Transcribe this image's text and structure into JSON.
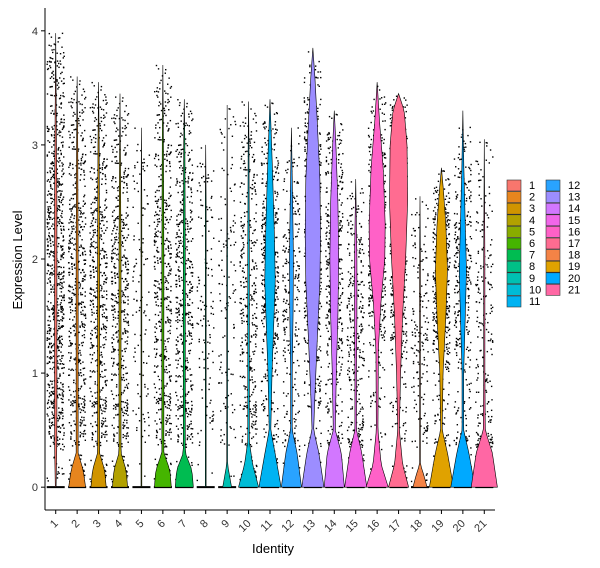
{
  "chart_data": {
    "type": "violin",
    "title": "",
    "xlabel": "Identity",
    "ylabel": "Expression Level",
    "ylim": [
      -0.2,
      4.2
    ],
    "yticks": [
      0,
      1,
      2,
      3,
      4
    ],
    "grid": false,
    "legend_position": "right",
    "legend_columns": 2,
    "jitter_points": true,
    "categories": [
      "1",
      "2",
      "3",
      "4",
      "5",
      "6",
      "7",
      "8",
      "9",
      "10",
      "11",
      "12",
      "13",
      "14",
      "15",
      "16",
      "17",
      "18",
      "19",
      "20",
      "21"
    ],
    "series": [
      {
        "name": "1",
        "color": "#F8766D",
        "max": 3.98,
        "zero_fraction": 0.08,
        "density": [
          [
            0,
            0.02
          ],
          [
            0.3,
            0.05
          ],
          [
            0.6,
            0.06
          ],
          [
            1.0,
            0.06
          ],
          [
            1.5,
            0.06
          ],
          [
            2.0,
            0.06
          ],
          [
            2.5,
            0.06
          ],
          [
            3.0,
            0.04
          ],
          [
            3.5,
            0.02
          ],
          [
            3.98,
            0.0
          ]
        ]
      },
      {
        "name": "2",
        "color": "#E7851E",
        "max": 3.6,
        "zero_fraction": 0.4,
        "density": [
          [
            0,
            0.42
          ],
          [
            0.15,
            0.3
          ],
          [
            0.3,
            0.05
          ],
          [
            1.0,
            0.05
          ],
          [
            2.0,
            0.05
          ],
          [
            3.0,
            0.03
          ],
          [
            3.6,
            0.0
          ]
        ]
      },
      {
        "name": "3",
        "color": "#D09400",
        "max": 3.55,
        "zero_fraction": 0.42,
        "density": [
          [
            0,
            0.38
          ],
          [
            0.15,
            0.3
          ],
          [
            0.3,
            0.05
          ],
          [
            1.0,
            0.05
          ],
          [
            2.0,
            0.05
          ],
          [
            3.0,
            0.03
          ],
          [
            3.55,
            0.0
          ]
        ]
      },
      {
        "name": "4",
        "color": "#B2A100",
        "max": 3.45,
        "zero_fraction": 0.45,
        "density": [
          [
            0,
            0.38
          ],
          [
            0.15,
            0.3
          ],
          [
            0.3,
            0.05
          ],
          [
            1.0,
            0.05
          ],
          [
            2.0,
            0.05
          ],
          [
            3.0,
            0.02
          ],
          [
            3.45,
            0.0
          ]
        ]
      },
      {
        "name": "5",
        "color": "#89AC00",
        "max": 3.15,
        "zero_fraction": 0.92,
        "density": [
          [
            0,
            0.02
          ],
          [
            0.5,
            0.02
          ],
          [
            1.5,
            0.02
          ],
          [
            2.5,
            0.02
          ],
          [
            3.15,
            0.0
          ]
        ]
      },
      {
        "name": "6",
        "color": "#45B500",
        "max": 3.7,
        "zero_fraction": 0.45,
        "density": [
          [
            0,
            0.42
          ],
          [
            0.15,
            0.35
          ],
          [
            0.3,
            0.05
          ],
          [
            1.0,
            0.05
          ],
          [
            2.0,
            0.05
          ],
          [
            3.0,
            0.03
          ],
          [
            3.7,
            0.0
          ]
        ]
      },
      {
        "name": "7",
        "color": "#00BC51",
        "max": 3.4,
        "zero_fraction": 0.45,
        "density": [
          [
            0,
            0.45
          ],
          [
            0.15,
            0.38
          ],
          [
            0.3,
            0.05
          ],
          [
            1.0,
            0.05
          ],
          [
            2.0,
            0.05
          ],
          [
            3.0,
            0.03
          ],
          [
            3.4,
            0.0
          ]
        ]
      },
      {
        "name": "8",
        "color": "#00C087",
        "max": 3.0,
        "zero_fraction": 0.9,
        "density": [
          [
            0,
            0.02
          ],
          [
            0.5,
            0.02
          ],
          [
            1.5,
            0.02
          ],
          [
            2.5,
            0.02
          ],
          [
            3.0,
            0.0
          ]
        ]
      },
      {
        "name": "9",
        "color": "#00C0B2",
        "max": 3.35,
        "zero_fraction": 0.9,
        "density": [
          [
            0,
            0.22
          ],
          [
            0.1,
            0.12
          ],
          [
            0.2,
            0.02
          ],
          [
            1.0,
            0.02
          ],
          [
            2.0,
            0.02
          ],
          [
            3.35,
            0.0
          ]
        ]
      },
      {
        "name": "10",
        "color": "#00BCD6",
        "max": 3.38,
        "zero_fraction": 0.6,
        "density": [
          [
            0,
            0.5
          ],
          [
            0.2,
            0.2
          ],
          [
            0.4,
            0.04
          ],
          [
            1.0,
            0.04
          ],
          [
            2.0,
            0.04
          ],
          [
            3.0,
            0.02
          ],
          [
            3.38,
            0.0
          ]
        ]
      },
      {
        "name": "11",
        "color": "#00B3F2",
        "max": 3.4,
        "zero_fraction": 0.45,
        "density": [
          [
            0,
            0.55
          ],
          [
            0.3,
            0.25
          ],
          [
            0.5,
            0.04
          ],
          [
            1.0,
            0.1
          ],
          [
            1.5,
            0.2
          ],
          [
            1.8,
            0.26
          ],
          [
            2.2,
            0.22
          ],
          [
            2.8,
            0.12
          ],
          [
            3.4,
            0.0
          ]
        ]
      },
      {
        "name": "12",
        "color": "#29A3FF",
        "max": 3.15,
        "zero_fraction": 0.7,
        "density": [
          [
            0,
            0.5
          ],
          [
            0.3,
            0.28
          ],
          [
            0.5,
            0.04
          ],
          [
            1.0,
            0.04
          ],
          [
            1.5,
            0.08
          ],
          [
            2.0,
            0.1
          ],
          [
            2.5,
            0.06
          ],
          [
            3.15,
            0.0
          ]
        ]
      },
      {
        "name": "13",
        "color": "#9C8DFF",
        "max": 3.85,
        "zero_fraction": 0.35,
        "density": [
          [
            0,
            0.55
          ],
          [
            0.3,
            0.3
          ],
          [
            0.5,
            0.04
          ],
          [
            0.8,
            0.1
          ],
          [
            1.3,
            0.22
          ],
          [
            1.8,
            0.35
          ],
          [
            2.2,
            0.38
          ],
          [
            2.7,
            0.35
          ],
          [
            3.2,
            0.22
          ],
          [
            3.6,
            0.1
          ],
          [
            3.85,
            0.0
          ]
        ]
      },
      {
        "name": "14",
        "color": "#D277FF",
        "max": 3.3,
        "zero_fraction": 0.5,
        "density": [
          [
            0,
            0.5
          ],
          [
            0.3,
            0.35
          ],
          [
            0.5,
            0.05
          ],
          [
            1.0,
            0.1
          ],
          [
            1.5,
            0.18
          ],
          [
            2.0,
            0.22
          ],
          [
            2.5,
            0.18
          ],
          [
            3.0,
            0.08
          ],
          [
            3.3,
            0.0
          ]
        ]
      },
      {
        "name": "15",
        "color": "#F166E9",
        "max": 2.7,
        "zero_fraction": 0.65,
        "density": [
          [
            0,
            0.55
          ],
          [
            0.3,
            0.3
          ],
          [
            0.5,
            0.04
          ],
          [
            1.0,
            0.04
          ],
          [
            1.5,
            0.06
          ],
          [
            2.0,
            0.06
          ],
          [
            2.7,
            0.0
          ]
        ]
      },
      {
        "name": "16",
        "color": "#FF61C7",
        "max": 3.55,
        "zero_fraction": 0.4,
        "density": [
          [
            0,
            0.55
          ],
          [
            0.2,
            0.2
          ],
          [
            0.5,
            0.04
          ],
          [
            1.2,
            0.06
          ],
          [
            1.6,
            0.18
          ],
          [
            2.0,
            0.38
          ],
          [
            2.3,
            0.4
          ],
          [
            2.8,
            0.3
          ],
          [
            3.2,
            0.12
          ],
          [
            3.55,
            0.0
          ]
        ]
      },
      {
        "name": "17",
        "color": "#FF6C91",
        "max": 3.45,
        "zero_fraction": 0.4,
        "density": [
          [
            0,
            0.5
          ],
          [
            0.2,
            0.2
          ],
          [
            0.5,
            0.04
          ],
          [
            1.0,
            0.1
          ],
          [
            1.5,
            0.2
          ],
          [
            2.0,
            0.35
          ],
          [
            2.5,
            0.45
          ],
          [
            3.0,
            0.42
          ],
          [
            3.3,
            0.28
          ],
          [
            3.45,
            0.0
          ]
        ]
      },
      {
        "name": "18",
        "color": "#F48346",
        "max": 2.55,
        "zero_fraction": 0.85,
        "density": [
          [
            0,
            0.35
          ],
          [
            0.1,
            0.2
          ],
          [
            0.2,
            0.02
          ],
          [
            1.0,
            0.02
          ],
          [
            2.0,
            0.02
          ],
          [
            2.55,
            0.0
          ]
        ]
      },
      {
        "name": "19",
        "color": "#E0A200",
        "max": 2.8,
        "zero_fraction": 0.5,
        "density": [
          [
            0,
            0.6
          ],
          [
            0.3,
            0.3
          ],
          [
            0.5,
            0.04
          ],
          [
            1.0,
            0.08
          ],
          [
            1.5,
            0.22
          ],
          [
            1.9,
            0.3
          ],
          [
            2.3,
            0.22
          ],
          [
            2.6,
            0.1
          ],
          [
            2.8,
            0.0
          ]
        ]
      },
      {
        "name": "20",
        "color": "#00A9FF",
        "max": 3.3,
        "zero_fraction": 0.6,
        "density": [
          [
            0,
            0.6
          ],
          [
            0.3,
            0.3
          ],
          [
            0.5,
            0.04
          ],
          [
            1.0,
            0.04
          ],
          [
            1.5,
            0.12
          ],
          [
            1.9,
            0.18
          ],
          [
            2.3,
            0.12
          ],
          [
            2.8,
            0.05
          ],
          [
            3.3,
            0.0
          ]
        ]
      },
      {
        "name": "21",
        "color": "#FF67A4",
        "max": 3.05,
        "zero_fraction": 0.75,
        "density": [
          [
            0,
            0.65
          ],
          [
            0.3,
            0.4
          ],
          [
            0.5,
            0.05
          ],
          [
            1.0,
            0.03
          ],
          [
            2.0,
            0.03
          ],
          [
            3.05,
            0.0
          ]
        ]
      }
    ]
  }
}
